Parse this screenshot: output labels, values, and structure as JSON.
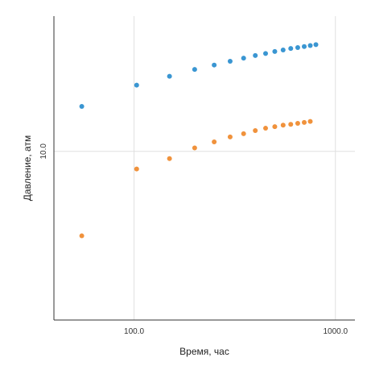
{
  "chart_data": {
    "type": "scatter",
    "xlabel": "Время, час",
    "ylabel": "Давление, атм",
    "x_scale": "log",
    "y_scale": "log",
    "xlim": [
      40,
      1250
    ],
    "ylim": [
      3.85,
      21.5
    ],
    "x_ticks": [
      100,
      1000
    ],
    "x_tick_labels": [
      "100.0",
      "1000.0"
    ],
    "y_ticks": [
      10
    ],
    "y_tick_labels": [
      "10.0"
    ],
    "grid": true,
    "legend": "none",
    "series": [
      {
        "color": "#3a96d2",
        "points": [
          [
            55,
            12.9
          ],
          [
            103,
            14.55
          ],
          [
            150,
            15.3
          ],
          [
            200,
            15.9
          ],
          [
            250,
            16.3
          ],
          [
            300,
            16.65
          ],
          [
            350,
            16.95
          ],
          [
            400,
            17.2
          ],
          [
            450,
            17.4
          ],
          [
            500,
            17.6
          ],
          [
            550,
            17.75
          ],
          [
            600,
            17.9
          ],
          [
            650,
            18.0
          ],
          [
            700,
            18.1
          ],
          [
            750,
            18.2
          ],
          [
            800,
            18.3
          ]
        ]
      },
      {
        "color": "#f0923c",
        "points": [
          [
            55,
            6.2
          ],
          [
            103,
            9.05
          ],
          [
            150,
            9.6
          ],
          [
            200,
            10.2
          ],
          [
            250,
            10.55
          ],
          [
            300,
            10.85
          ],
          [
            350,
            11.05
          ],
          [
            400,
            11.25
          ],
          [
            450,
            11.4
          ],
          [
            500,
            11.5
          ],
          [
            550,
            11.6
          ],
          [
            600,
            11.65
          ],
          [
            650,
            11.72
          ],
          [
            700,
            11.78
          ],
          [
            750,
            11.85
          ]
        ]
      }
    ]
  }
}
